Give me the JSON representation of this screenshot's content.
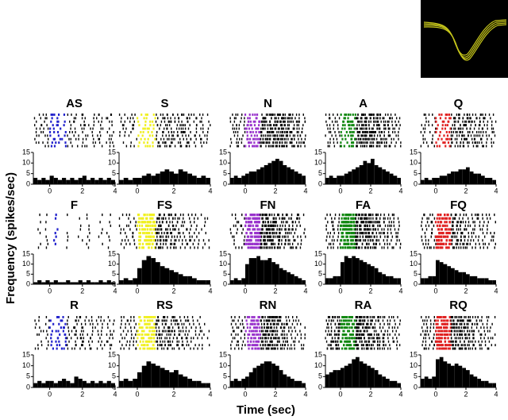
{
  "chart_data": {
    "type": "histogram",
    "xlabel": "Time (sec)",
    "ylabel": "Frequency (spikes/sec)",
    "bins": [
      -1,
      -0.75,
      -0.5,
      -0.25,
      0,
      0.25,
      0.5,
      0.75,
      1,
      1.25,
      1.5,
      1.75,
      2,
      2.25,
      2.5,
      2.75,
      3,
      3.25,
      3.5,
      3.75,
      4
    ],
    "xlim": [
      -1,
      4
    ],
    "ylim": [
      0,
      15
    ],
    "xticks": [
      0,
      2,
      4
    ],
    "yticks": [
      0,
      5,
      10,
      15
    ],
    "color": "#000000",
    "panels": [
      {
        "title": "AS",
        "color": "#2222cc",
        "values": [
          3,
          2,
          3,
          2,
          4,
          3,
          2,
          3,
          2,
          3,
          2,
          3,
          4,
          2,
          3,
          2,
          3,
          2,
          3,
          2
        ]
      },
      {
        "title": "S",
        "color": "#f0f020",
        "values": [
          2,
          3,
          2,
          3,
          3,
          4,
          5,
          4,
          5,
          6,
          7,
          6,
          5,
          7,
          6,
          5,
          4,
          3,
          4,
          3
        ]
      },
      {
        "title": "N",
        "color": "#9933cc",
        "values": [
          3,
          4,
          3,
          4,
          5,
          6,
          6,
          7,
          8,
          9,
          10,
          11,
          12,
          11,
          9,
          8,
          7,
          6,
          5,
          4
        ]
      },
      {
        "title": "A",
        "color": "#118811",
        "values": [
          3,
          4,
          3,
          4,
          4,
          5,
          6,
          7,
          8,
          9,
          11,
          10,
          12,
          9,
          8,
          7,
          6,
          5,
          4,
          3
        ]
      },
      {
        "title": "Q",
        "color": "#e02020",
        "values": [
          2,
          3,
          2,
          3,
          3,
          4,
          4,
          5,
          6,
          6,
          7,
          7,
          8,
          6,
          5,
          5,
          4,
          3,
          3,
          2
        ]
      },
      {
        "title": "F",
        "color": "#2222cc",
        "values": [
          1,
          2,
          1,
          2,
          1,
          2,
          1,
          1,
          2,
          1,
          1,
          2,
          1,
          2,
          1,
          1,
          2,
          1,
          2,
          1
        ]
      },
      {
        "title": "FS",
        "color": "#f0f020",
        "values": [
          2,
          3,
          2,
          3,
          8,
          12,
          14,
          13,
          11,
          9,
          8,
          7,
          6,
          5,
          4,
          4,
          3,
          2,
          2,
          2
        ]
      },
      {
        "title": "FN",
        "color": "#9933cc",
        "values": [
          2,
          3,
          2,
          3,
          10,
          13,
          13,
          14,
          12,
          12,
          13,
          11,
          10,
          8,
          7,
          6,
          5,
          4,
          3,
          2
        ]
      },
      {
        "title": "FA",
        "color": "#118811",
        "values": [
          3,
          3,
          4,
          4,
          11,
          14,
          13,
          14,
          13,
          12,
          11,
          10,
          9,
          8,
          6,
          5,
          4,
          4,
          3,
          3
        ]
      },
      {
        "title": "FQ",
        "color": "#e02020",
        "values": [
          3,
          3,
          4,
          4,
          12,
          11,
          10,
          9,
          8,
          7,
          6,
          6,
          5,
          4,
          4,
          3,
          3,
          3,
          2,
          2
        ]
      },
      {
        "title": "R",
        "color": "#2222cc",
        "values": [
          2,
          3,
          2,
          3,
          3,
          2,
          3,
          4,
          3,
          2,
          5,
          4,
          3,
          2,
          3,
          2,
          3,
          2,
          3,
          2
        ]
      },
      {
        "title": "RS",
        "color": "#f0f020",
        "values": [
          3,
          4,
          3,
          4,
          7,
          10,
          12,
          11,
          10,
          9,
          8,
          7,
          8,
          6,
          5,
          4,
          3,
          3,
          2,
          2
        ]
      },
      {
        "title": "RN",
        "color": "#9933cc",
        "values": [
          3,
          4,
          3,
          4,
          5,
          7,
          9,
          10,
          11,
          12,
          12,
          11,
          10,
          8,
          6,
          5,
          4,
          3,
          3,
          2
        ]
      },
      {
        "title": "RA",
        "color": "#118811",
        "values": [
          6,
          7,
          8,
          8,
          9,
          10,
          11,
          13,
          14,
          12,
          11,
          10,
          9,
          8,
          6,
          5,
          4,
          3,
          3,
          2
        ]
      },
      {
        "title": "RQ",
        "color": "#e02020",
        "values": [
          4,
          5,
          4,
          5,
          13,
          14,
          12,
          11,
          10,
          11,
          10,
          9,
          8,
          6,
          5,
          4,
          3,
          3,
          2,
          2
        ]
      }
    ]
  }
}
